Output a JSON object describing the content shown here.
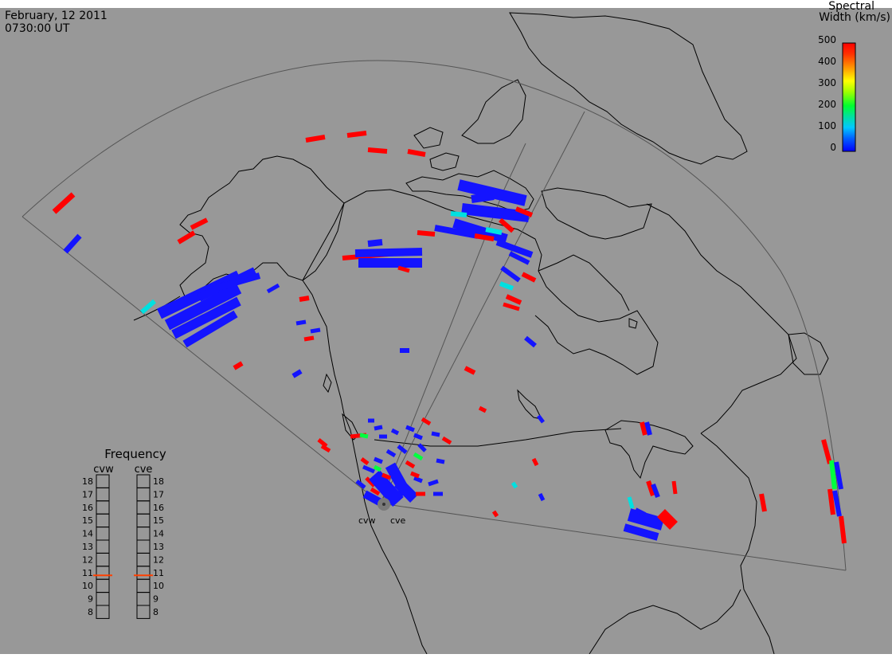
{
  "header": {
    "date": "February, 12 2011",
    "time": "0730:00 UT"
  },
  "colorbar": {
    "title_line1": "Spectral",
    "title_line2": "Width (km/s)",
    "ticks": [
      "500",
      "400",
      "300",
      "200",
      "100",
      "0"
    ],
    "colors": [
      "#0000ff",
      "#0080ff",
      "#00e0e0",
      "#00ff40",
      "#a0ff00",
      "#ffff00",
      "#ffa000",
      "#ff4000",
      "#ff0000"
    ]
  },
  "frequency_panel": {
    "title": "Frequency",
    "left_label": "cvw",
    "right_label": "cve",
    "levels": [
      "18",
      "17",
      "16",
      "15",
      "14",
      "13",
      "12",
      "11",
      "10",
      "9",
      "8"
    ],
    "cvw_indicator": "10.8",
    "cve_indicator": "10.8",
    "indicator_color": "#ff4000"
  },
  "radar_labels": {
    "west": "cvw",
    "east": "cve"
  },
  "colors": {
    "background": "#989898",
    "low_width": "#1414ff",
    "high_width": "#ff0000",
    "mid_width": "#00e0e0",
    "green": "#00ff40",
    "outline": "#000000"
  }
}
